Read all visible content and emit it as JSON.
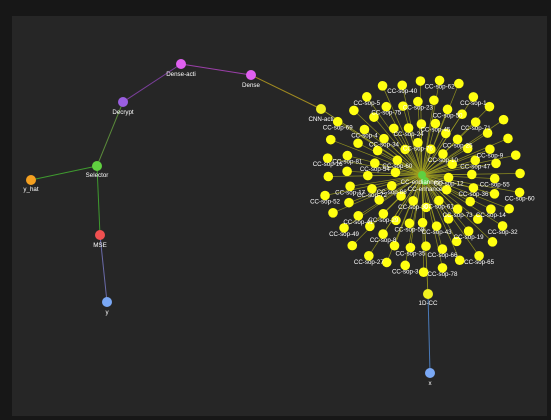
{
  "graph": {
    "nodes": [
      {
        "id": "y_hat",
        "label": "y_hat",
        "color": "#f5a020"
      },
      {
        "id": "selector",
        "label": "Selector",
        "color": "#60d040"
      },
      {
        "id": "decrypt",
        "label": "Decrypt",
        "color": "#9a5ee0"
      },
      {
        "id": "dense_acti",
        "label": "Dense-acti",
        "color": "#e060f0"
      },
      {
        "id": "dense",
        "label": "Dense",
        "color": "#e060f0"
      },
      {
        "id": "cnn_acti",
        "label": "CNN-acti",
        "color": "#f0f020"
      },
      {
        "id": "cc_endianness",
        "label": "CC-endianness",
        "color": "#60d040"
      },
      {
        "id": "cc_enhance",
        "label": "CC-enhance",
        "color": "#60d040"
      },
      {
        "id": "mse",
        "label": "MSE",
        "color": "#f05050"
      },
      {
        "id": "y",
        "label": "y",
        "color": "#7aa8f5"
      },
      {
        "id": "one_d_cc",
        "label": "1D-CC",
        "color": "#f0f020"
      },
      {
        "id": "x",
        "label": "x",
        "color": "#7aa8f5"
      }
    ],
    "edges": [
      {
        "from": "y_hat",
        "to": "selector",
        "color": "#3f9a2f"
      },
      {
        "from": "selector",
        "to": "decrypt",
        "color": "#5a8a3a"
      },
      {
        "from": "decrypt",
        "to": "dense_acti",
        "color": "#7a3f9a"
      },
      {
        "from": "dense_acti",
        "to": "dense",
        "color": "#9a3fa8"
      },
      {
        "from": "dense",
        "to": "cnn_acti",
        "color": "#a08a20"
      },
      {
        "from": "selector",
        "to": "mse",
        "color": "#3f9a2f"
      },
      {
        "from": "mse",
        "to": "y",
        "color": "#6a6aa8"
      },
      {
        "from": "one_d_cc",
        "to": "x",
        "color": "#4a7ab8"
      }
    ],
    "hub_edge_color": "#a0a020",
    "sop_node_color": "#ffff10",
    "sop_labels": [
      "CC-sop-12",
      "CC-sop-61",
      "CC-sop-39",
      "CC-sop-86",
      "CC-sop-60",
      "CC-sop-76",
      "CC-sop-10",
      "CC-sop-36",
      "CC-sop-73",
      "CC-sop-43",
      "CC-sop-58",
      "CC-sop-29",
      "CC-sop-72",
      "CC-sop-54",
      "CC-sop-34",
      "CC-sop-24",
      "CC-sop-45",
      "CC-sop-25",
      "CC-sop-47",
      "CC-sop-55",
      "CC-sop-14",
      "CC-sop-19",
      "CC-sop-66",
      "CC-sop-35",
      "CC-sop-8",
      "CC-sop-41",
      "CC-sop-17",
      "CC-sop-81",
      "CC-sop-4",
      "CC-sop-75",
      "CC-sop-23",
      "CC-sop-50",
      "CC-sop-71",
      "CC-sop-9",
      "CC-sop-60",
      "CC-sop-32",
      "CC-sop-65",
      "CC-sop-78",
      "CC-sop-3",
      "CC-sop-27",
      "CC-sop-49",
      "CC-sop-52",
      "CC-sop-16",
      "CC-sop-69",
      "CC-sop-5",
      "CC-sop-40",
      "CC-sop-62",
      "CC-sop-1"
    ],
    "sop_count": 100
  }
}
